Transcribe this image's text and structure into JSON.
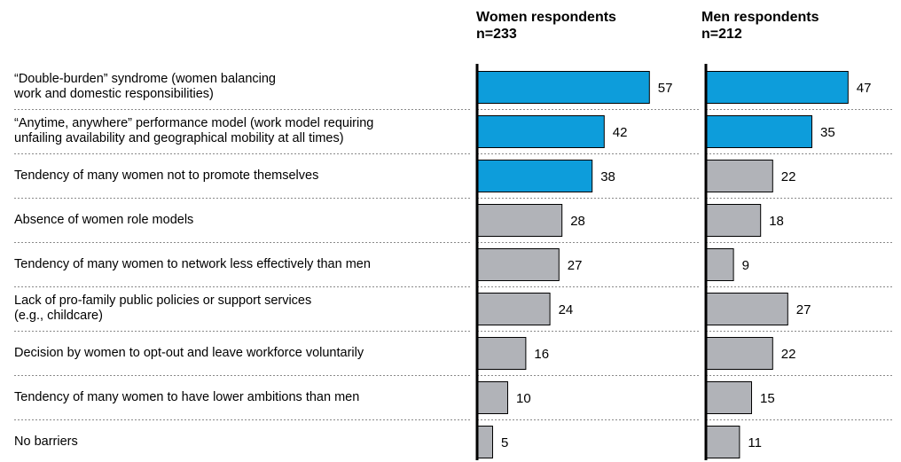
{
  "chart_data": {
    "type": "bar",
    "orientation": "horizontal",
    "categories": [
      "“Double-burden” syndrome (women balancing work and domestic responsibilities)",
      "“Anytime, anywhere” performance model (work model requiring unfailing availability and geographical mobility at all times)",
      "Tendency of many women not to promote themselves",
      "Absence of women role models",
      "Tendency of many women to network less effectively than men",
      "Lack of pro-family public policies or support services (e.g., childcare)",
      "Decision by women to opt-out and leave workforce voluntarily",
      "Tendency of many women to have lower ambitions than men",
      "No barriers"
    ],
    "category_lines": [
      [
        "“Double-burden” syndrome (women balancing",
        "work and domestic responsibilities)"
      ],
      [
        "“Anytime, anywhere” performance model (work model requiring",
        "unfailing availability and geographical mobility at all times)"
      ],
      [
        "Tendency of many women not to promote themselves"
      ],
      [
        "Absence of women role models"
      ],
      [
        "Tendency of many women to network less effectively than men"
      ],
      [
        "Lack of pro-family public policies or support services",
        "(e.g., childcare)"
      ],
      [
        "Decision by women to opt-out and leave workforce voluntarily"
      ],
      [
        "Tendency of many women to have lower ambitions than men"
      ],
      [
        "No barriers"
      ]
    ],
    "series": [
      {
        "name": "Women respondents",
        "n_label": "n=233",
        "values": [
          57,
          42,
          38,
          28,
          27,
          24,
          16,
          10,
          5
        ],
        "highlight_count": 3
      },
      {
        "name": "Men respondents",
        "n_label": "n=212",
        "values": [
          47,
          35,
          22,
          18,
          9,
          27,
          22,
          15,
          11
        ],
        "highlight_count": 2
      }
    ],
    "colors": {
      "highlight": "#0d9ddb",
      "normal": "#b1b3b8",
      "bar_border": "#000000",
      "separator": "#8a8a8a"
    },
    "grid": false
  }
}
